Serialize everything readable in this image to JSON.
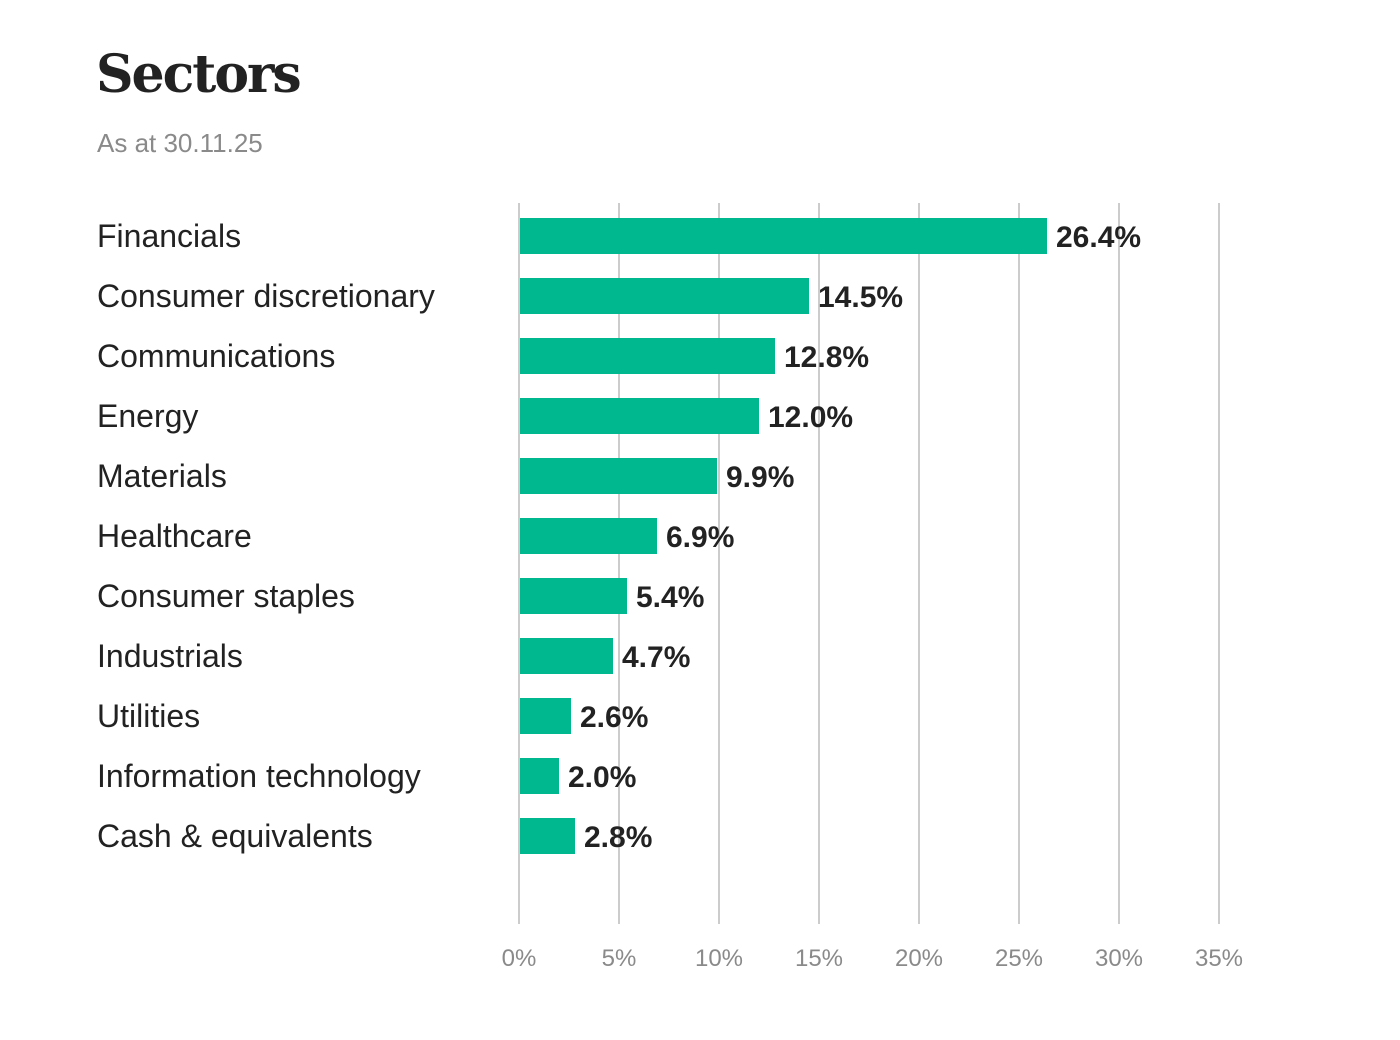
{
  "chart_data": {
    "type": "bar",
    "orientation": "horizontal",
    "title": "Sectors",
    "subtitle": "As at 30.11.25",
    "categories": [
      "Financials",
      "Consumer discretionary",
      "Communications",
      "Energy",
      "Materials",
      "Healthcare",
      "Consumer staples",
      "Industrials",
      "Utilities",
      "Information technology",
      "Cash & equivalents"
    ],
    "values": [
      26.4,
      14.5,
      12.8,
      12.0,
      9.9,
      6.9,
      5.4,
      4.7,
      2.6,
      2.0,
      2.8
    ],
    "value_labels": [
      "26.4%",
      "14.5%",
      "12.8%",
      "12.0%",
      "9.9%",
      "6.9%",
      "5.4%",
      "4.7%",
      "2.6%",
      "2.0%",
      "2.8%"
    ],
    "xlim": [
      0,
      35
    ],
    "x_ticks": [
      0,
      5,
      10,
      15,
      20,
      25,
      30,
      35
    ],
    "x_tick_labels": [
      "0%",
      "5%",
      "10%",
      "15%",
      "20%",
      "25%",
      "30%",
      "35%"
    ],
    "grid": "vertical",
    "bar_color": "#00b890",
    "xlabel": "",
    "ylabel": ""
  }
}
